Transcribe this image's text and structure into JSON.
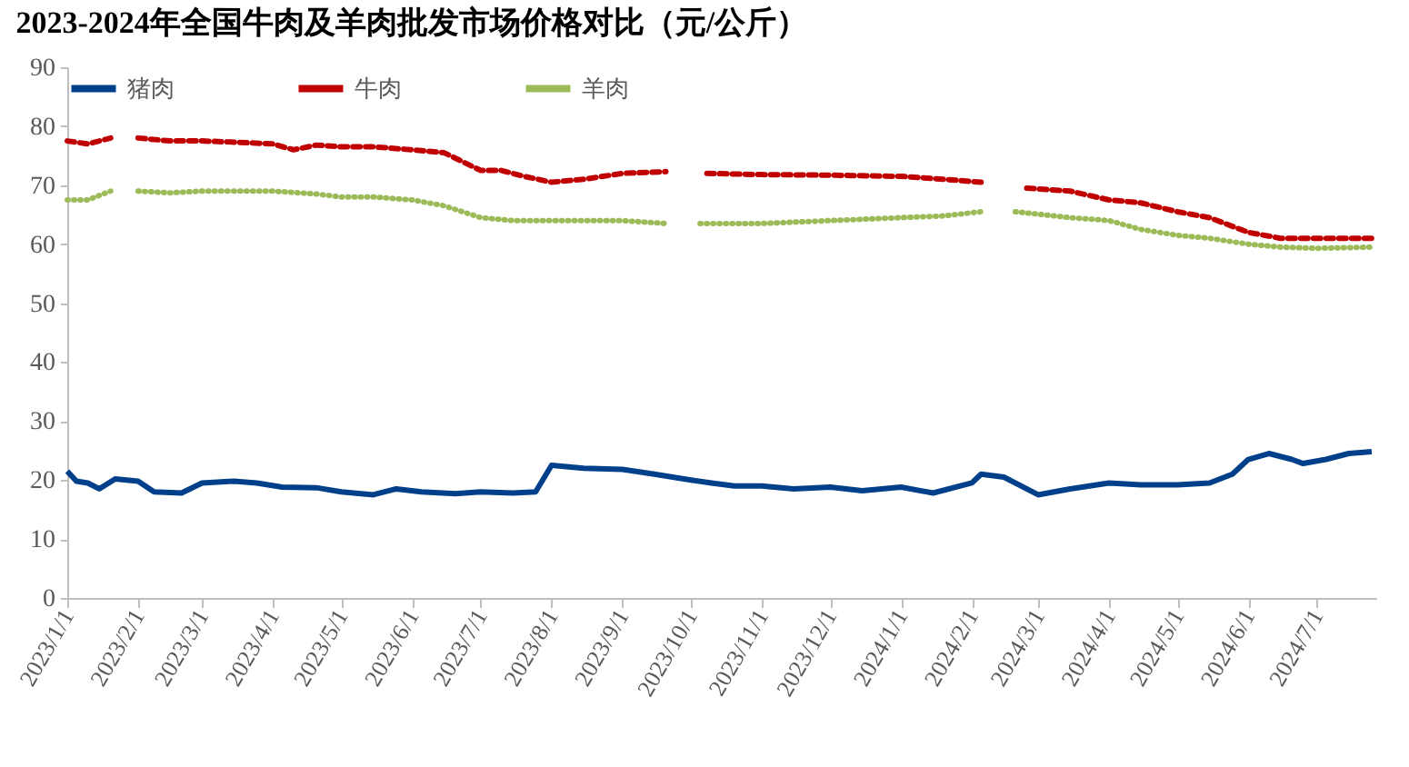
{
  "chart_data": {
    "type": "line",
    "title": "2023-2024年全国牛肉及羊肉批发市场价格对比（元/公斤）",
    "legend": "top",
    "grid": false,
    "xlim": [
      "2023-01-01",
      "2024-07-27"
    ],
    "xticks": [
      {
        "value": "2023-01-01",
        "label": "2023/1/1"
      },
      {
        "value": "2023-02-01",
        "label": "2023/2/1"
      },
      {
        "value": "2023-03-01",
        "label": "2023/3/1"
      },
      {
        "value": "2023-04-01",
        "label": "2023/4/1"
      },
      {
        "value": "2023-05-01",
        "label": "2023/5/1"
      },
      {
        "value": "2023-06-01",
        "label": "2023/6/1"
      },
      {
        "value": "2023-07-01",
        "label": "2023/7/1"
      },
      {
        "value": "2023-08-01",
        "label": "2023/8/1"
      },
      {
        "value": "2023-09-01",
        "label": "2023/9/1"
      },
      {
        "value": "2023-10-01",
        "label": "2023/10/1"
      },
      {
        "value": "2023-11-01",
        "label": "2023/11/1"
      },
      {
        "value": "2023-12-01",
        "label": "2023/12/1"
      },
      {
        "value": "2024-01-01",
        "label": "2024/1/1"
      },
      {
        "value": "2024-02-01",
        "label": "2024/2/1"
      },
      {
        "value": "2024-03-01",
        "label": "2024/3/1"
      },
      {
        "value": "2024-04-01",
        "label": "2024/4/1"
      },
      {
        "value": "2024-05-01",
        "label": "2024/5/1"
      },
      {
        "value": "2024-06-01",
        "label": "2024/6/1"
      },
      {
        "value": "2024-07-01",
        "label": "2024/7/1"
      }
    ],
    "ylim": [
      0,
      90
    ],
    "yticks": [
      0,
      10,
      20,
      30,
      40,
      50,
      60,
      70,
      80,
      90
    ],
    "series": [
      {
        "name": "猪肉",
        "color": "#003f8a",
        "line_style": "solid",
        "x": [
          "2023-01-01",
          "2023-01-05",
          "2023-01-10",
          "2023-01-15",
          "2023-01-22",
          "2023-02-01",
          "2023-02-08",
          "2023-02-20",
          "2023-03-01",
          "2023-03-15",
          "2023-03-25",
          "2023-04-05",
          "2023-04-20",
          "2023-05-01",
          "2023-05-15",
          "2023-05-25",
          "2023-06-05",
          "2023-06-20",
          "2023-07-01",
          "2023-07-15",
          "2023-07-25",
          "2023-08-01",
          "2023-08-15",
          "2023-09-01",
          "2023-09-15",
          "2023-10-01",
          "2023-10-10",
          "2023-10-20",
          "2023-11-01",
          "2023-11-15",
          "2023-12-01",
          "2023-12-15",
          "2024-01-01",
          "2024-01-15",
          "2024-02-01",
          "2024-02-05",
          "2024-02-15",
          "2024-03-01",
          "2024-03-15",
          "2024-04-01",
          "2024-04-15",
          "2024-05-01",
          "2024-05-15",
          "2024-05-25",
          "2024-06-01",
          "2024-06-10",
          "2024-06-20",
          "2024-06-25",
          "2024-07-05",
          "2024-07-15",
          "2024-07-25"
        ],
        "values": [
          21.5,
          19.8,
          19.5,
          18.5,
          20.2,
          19.8,
          18,
          17.8,
          19.5,
          19.8,
          19.5,
          18.8,
          18.7,
          18,
          17.5,
          18.5,
          18,
          17.7,
          18,
          17.8,
          18,
          22.5,
          22,
          21.8,
          21,
          20,
          19.5,
          19,
          19,
          18.5,
          18.8,
          18.2,
          18.8,
          17.8,
          19.5,
          21,
          20.5,
          17.5,
          18.5,
          19.5,
          19.2,
          19.2,
          19.5,
          21,
          23.5,
          24.5,
          23.5,
          22.8,
          23.5,
          24.5,
          24.8
        ]
      },
      {
        "name": "牛肉",
        "color": "#c00000",
        "line_style": "dashed",
        "x": [
          "2023-01-01",
          "2023-01-10",
          "2023-01-20",
          "2023-01-25",
          "2023-02-01",
          "2023-02-15",
          "2023-03-01",
          "2023-03-15",
          "2023-04-01",
          "2023-04-10",
          "2023-04-20",
          "2023-05-01",
          "2023-05-15",
          "2023-06-01",
          "2023-06-15",
          "2023-07-01",
          "2023-07-10",
          "2023-07-20",
          "2023-08-01",
          "2023-08-15",
          "2023-09-01",
          "2023-09-20",
          "2023-10-01",
          "2023-10-08",
          "2023-11-01",
          "2023-12-01",
          "2024-01-01",
          "2024-01-20",
          "2024-02-05",
          "2024-02-15",
          "2024-02-25",
          "2024-03-15",
          "2024-04-01",
          "2024-04-15",
          "2024-05-01",
          "2024-05-15",
          "2024-06-01",
          "2024-06-15",
          "2024-07-01",
          "2024-07-25"
        ],
        "values": [
          77.5,
          77,
          78,
          null,
          78,
          77.5,
          77.5,
          77.3,
          77,
          76,
          76.8,
          76.5,
          76.5,
          76,
          75.5,
          72.5,
          72.5,
          71.5,
          70.5,
          71,
          72,
          72.3,
          null,
          72,
          71.8,
          71.7,
          71.5,
          71,
          70.5,
          null,
          69.5,
          69,
          67.5,
          67,
          65.5,
          64.5,
          62,
          61,
          61,
          61
        ]
      },
      {
        "name": "羊肉",
        "color": "#9bbb59",
        "line_style": "dotted",
        "x": [
          "2023-01-01",
          "2023-01-10",
          "2023-01-20",
          "2023-01-25",
          "2023-02-01",
          "2023-02-15",
          "2023-03-01",
          "2023-03-15",
          "2023-04-01",
          "2023-04-20",
          "2023-05-01",
          "2023-05-15",
          "2023-06-01",
          "2023-06-15",
          "2023-07-01",
          "2023-07-15",
          "2023-08-01",
          "2023-08-20",
          "2023-09-01",
          "2023-09-20",
          "2023-10-01",
          "2023-10-05",
          "2023-11-01",
          "2023-12-01",
          "2024-01-01",
          "2024-01-20",
          "2024-02-05",
          "2024-02-12",
          "2024-02-20",
          "2024-03-15",
          "2024-04-01",
          "2024-04-15",
          "2024-05-01",
          "2024-05-15",
          "2024-06-01",
          "2024-06-15",
          "2024-07-01",
          "2024-07-25"
        ],
        "values": [
          67.5,
          67.5,
          69,
          null,
          69,
          68.7,
          69,
          69,
          69,
          68.5,
          68,
          68,
          67.5,
          66.5,
          64.5,
          64,
          64,
          64,
          64,
          63.5,
          null,
          63.5,
          63.5,
          64,
          64.5,
          64.8,
          65.5,
          null,
          65.5,
          64.5,
          64,
          62.5,
          61.5,
          61,
          60,
          59.5,
          59.3,
          59.5
        ]
      }
    ]
  }
}
